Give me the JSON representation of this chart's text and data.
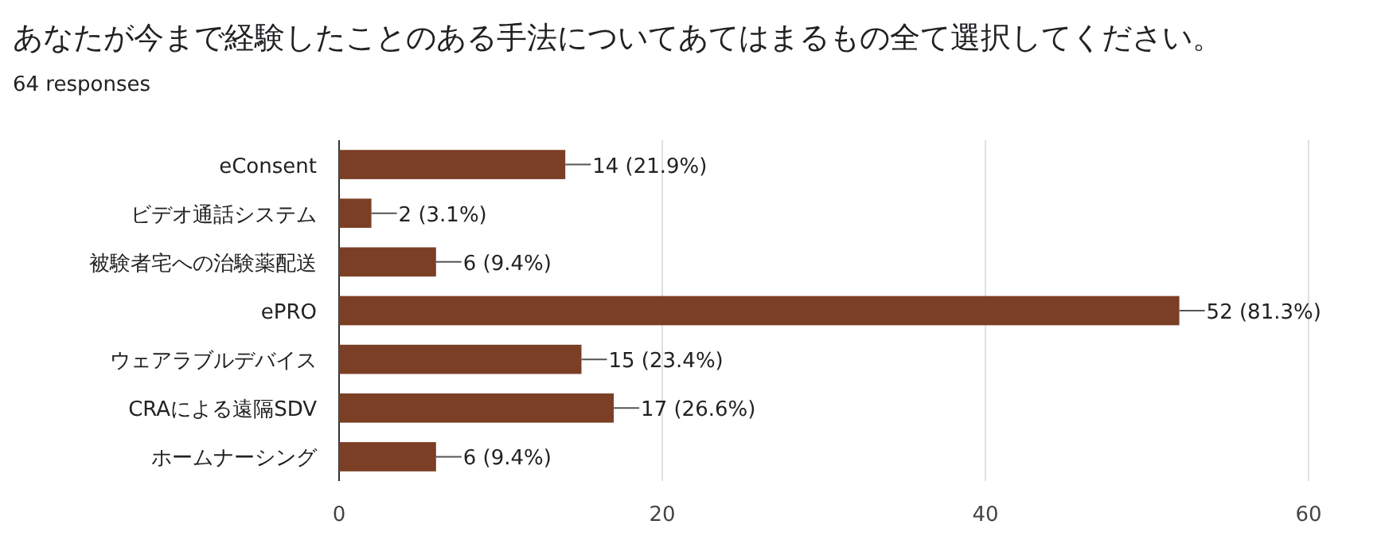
{
  "chart_data": {
    "type": "bar",
    "orientation": "horizontal",
    "title": "あなたが今まで経験したことのある手法についてあてはまるもの全て選択してください。",
    "subtitle": "64 responses",
    "categories": [
      "eConsent",
      "ビデオ通話システム",
      "被験者宅への治験薬配送",
      "ePRO",
      "ウェアラブルデバイス",
      "CRAによる遠隔SDV",
      "ホームナーシング"
    ],
    "values": [
      14,
      2,
      6,
      52,
      15,
      17,
      6
    ],
    "value_labels": [
      "14 (21.9%)",
      "2 (3.1%)",
      "6 (9.4%)",
      "52 (81.3%)",
      "15 (23.4%)",
      "17 (26.6%)",
      "6 (9.4%)"
    ],
    "color": "#7b3f26",
    "xlim": [
      0,
      60
    ],
    "xticks": [
      0,
      20,
      40,
      60
    ],
    "grid": "x"
  }
}
